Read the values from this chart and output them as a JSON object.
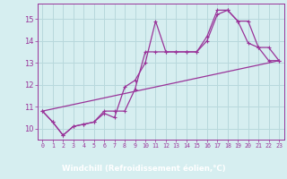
{
  "xlabel": "Windchill (Refroidissement éolien,°C)",
  "background_color": "#d6eef0",
  "grid_color": "#b8d8dc",
  "line_color": "#993399",
  "xlabel_bg": "#7b3f9e",
  "xlabel_fg": "#ffffff",
  "xlim": [
    -0.5,
    23.5
  ],
  "ylim": [
    9.5,
    15.7
  ],
  "yticks": [
    10,
    11,
    12,
    13,
    14,
    15
  ],
  "xticks": [
    0,
    1,
    2,
    3,
    4,
    5,
    6,
    7,
    8,
    9,
    10,
    11,
    12,
    13,
    14,
    15,
    16,
    17,
    18,
    19,
    20,
    21,
    22,
    23
  ],
  "series1_x": [
    0,
    1,
    2,
    3,
    4,
    5,
    6,
    7,
    8,
    9,
    10,
    11,
    12,
    13,
    14,
    15,
    16,
    17,
    18,
    19,
    20,
    21,
    22,
    23
  ],
  "series1_y": [
    10.8,
    10.3,
    9.7,
    10.1,
    10.2,
    10.3,
    10.7,
    10.5,
    11.9,
    12.2,
    13.0,
    14.9,
    13.5,
    13.5,
    13.5,
    13.5,
    14.0,
    15.2,
    15.4,
    14.9,
    13.9,
    13.7,
    13.1,
    13.1
  ],
  "series2_x": [
    0,
    1,
    2,
    3,
    4,
    5,
    6,
    7,
    8,
    9,
    10,
    11,
    12,
    13,
    14,
    15,
    16,
    17,
    18,
    19,
    20,
    21,
    22,
    23
  ],
  "series2_y": [
    10.8,
    10.3,
    9.7,
    10.1,
    10.2,
    10.3,
    10.8,
    10.8,
    10.8,
    11.8,
    13.5,
    13.5,
    13.5,
    13.5,
    13.5,
    13.5,
    14.2,
    15.4,
    15.4,
    14.9,
    14.9,
    13.7,
    13.7,
    13.1
  ],
  "trend_x": [
    0,
    23
  ],
  "trend_y": [
    10.8,
    13.1
  ]
}
